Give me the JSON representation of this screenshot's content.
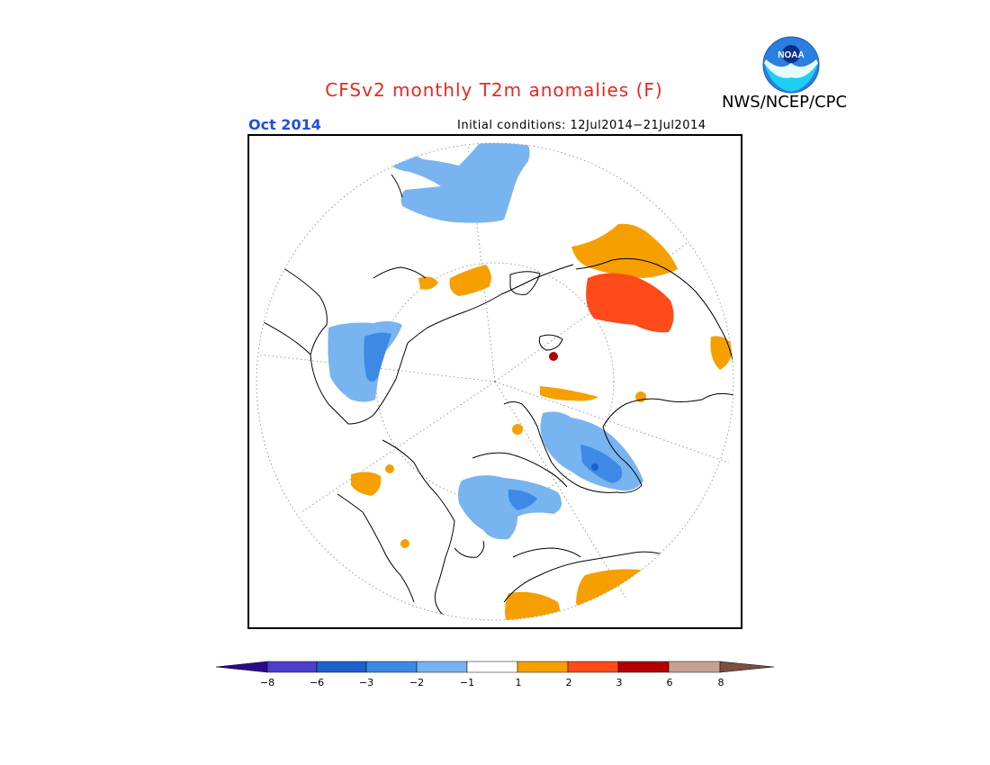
{
  "title": "CFSv2 monthly T2m anomalies (F)",
  "month": "Oct 2014",
  "initial_conditions": "Initial conditions: 12Jul2014−21Jul2014",
  "agency": "NWS/NCEP/CPC",
  "logo_text": "NOAA",
  "colorbar": {
    "labels": [
      "−8",
      "−6",
      "−3",
      "−2",
      "−1",
      "1",
      "2",
      "3",
      "6",
      "8"
    ],
    "colors": [
      "#2d0a8a",
      "#4d3fc9",
      "#1e5fcc",
      "#3c8ae6",
      "#78b4f0",
      "#ffffff",
      "#f5a000",
      "#ff4a1a",
      "#b30000",
      "#c8a090",
      "#7a5040"
    ]
  },
  "colors": {
    "title": "#e8281f",
    "month": "#1f4ee0",
    "cold_light": "#78b4f0",
    "cold_mid": "#3c8ae6",
    "warm_light": "#f5a000",
    "warm_mid": "#ff4a1a"
  }
}
